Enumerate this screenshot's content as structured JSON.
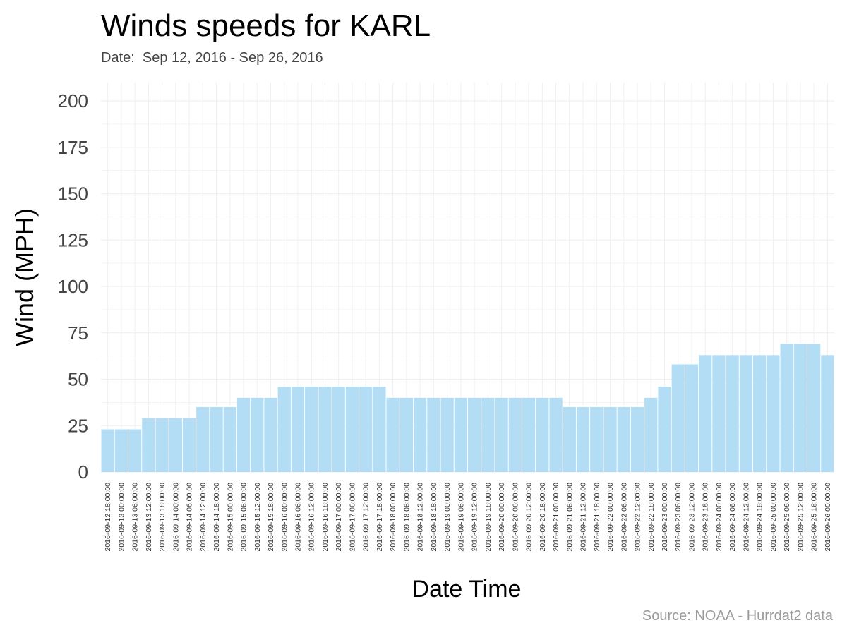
{
  "title": "Winds speeds for KARL",
  "subtitle": "Date:  Sep 12, 2016 - Sep 26, 2016",
  "source": "Source: NOAA - Hurrdat2 data",
  "colors": {
    "bar": "#b3ddf4",
    "grid": "#f0f0f0"
  },
  "chart_data": {
    "type": "bar",
    "xlabel": "Date Time",
    "ylabel": "Wind (MPH)",
    "ylim": [
      0,
      200
    ],
    "yticks": [
      0,
      25,
      50,
      75,
      100,
      125,
      150,
      175,
      200
    ],
    "grid": true,
    "categories": [
      "2016-09-12 18:00:00",
      "2016-09-13 00:00:00",
      "2016-09-13 06:00:00",
      "2016-09-13 12:00:00",
      "2016-09-13 18:00:00",
      "2016-09-14 00:00:00",
      "2016-09-14 06:00:00",
      "2016-09-14 12:00:00",
      "2016-09-14 18:00:00",
      "2016-09-15 00:00:00",
      "2016-09-15 06:00:00",
      "2016-09-15 12:00:00",
      "2016-09-15 18:00:00",
      "2016-09-16 00:00:00",
      "2016-09-16 06:00:00",
      "2016-09-16 12:00:00",
      "2016-09-16 18:00:00",
      "2016-09-17 00:00:00",
      "2016-09-17 06:00:00",
      "2016-09-17 12:00:00",
      "2016-09-17 18:00:00",
      "2016-09-18 00:00:00",
      "2016-09-18 06:00:00",
      "2016-09-18 12:00:00",
      "2016-09-18 18:00:00",
      "2016-09-19 00:00:00",
      "2016-09-19 06:00:00",
      "2016-09-19 12:00:00",
      "2016-09-19 18:00:00",
      "2016-09-20 00:00:00",
      "2016-09-20 06:00:00",
      "2016-09-20 12:00:00",
      "2016-09-20 18:00:00",
      "2016-09-21 00:00:00",
      "2016-09-21 06:00:00",
      "2016-09-21 12:00:00",
      "2016-09-21 18:00:00",
      "2016-09-22 00:00:00",
      "2016-09-22 06:00:00",
      "2016-09-22 12:00:00",
      "2016-09-22 18:00:00",
      "2016-09-23 00:00:00",
      "2016-09-23 06:00:00",
      "2016-09-23 12:00:00",
      "2016-09-23 18:00:00",
      "2016-09-24 00:00:00",
      "2016-09-24 06:00:00",
      "2016-09-24 12:00:00",
      "2016-09-24 18:00:00",
      "2016-09-25 00:00:00",
      "2016-09-25 06:00:00",
      "2016-09-25 12:00:00",
      "2016-09-25 18:00:00",
      "2016-09-26 00:00:00"
    ],
    "values": [
      23,
      23,
      23,
      29,
      29,
      29,
      29,
      35,
      35,
      35,
      40,
      40,
      40,
      46,
      46,
      46,
      46,
      46,
      46,
      46,
      46,
      40,
      40,
      40,
      40,
      40,
      40,
      40,
      40,
      40,
      40,
      40,
      40,
      40,
      35,
      35,
      35,
      35,
      35,
      35,
      40,
      46,
      58,
      58,
      63,
      63,
      63,
      63,
      63,
      63,
      69,
      69,
      69,
      63
    ]
  }
}
